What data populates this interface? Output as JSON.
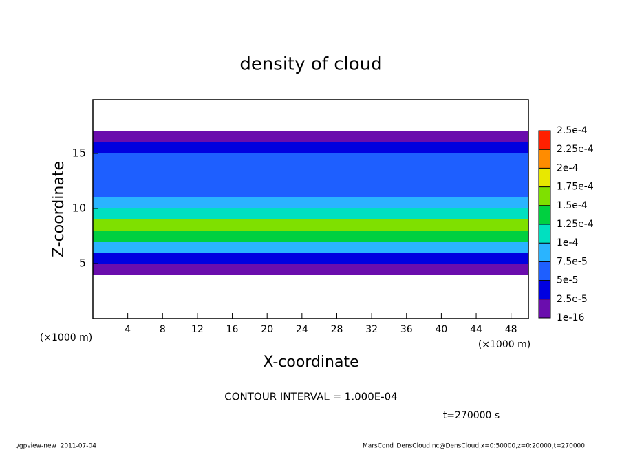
{
  "chart_data": {
    "type": "heatmap",
    "title": "density of cloud",
    "xlabel": "X-coordinate",
    "ylabel": "Z-coordinate",
    "x_unit": "(×1000 m)",
    "y_unit": "(×1000 m)",
    "xlim": [
      0,
      50
    ],
    "xticks": [
      4,
      8,
      12,
      16,
      20,
      24,
      28,
      32,
      36,
      40,
      44,
      48
    ],
    "ylim": [
      0,
      20
    ],
    "yticks": [
      5,
      10,
      15
    ],
    "z_bins": [
      4,
      5,
      6,
      7,
      8,
      9,
      10,
      11,
      12,
      13,
      14,
      15,
      16,
      17
    ],
    "values": [
      1e-05,
      4e-05,
      9e-05,
      0.00014,
      0.00015,
      0.00012,
      8e-05,
      6e-05,
      6e-05,
      5e-05,
      5e-05,
      4e-05,
      1e-05
    ],
    "levels": [
      {
        "value": 1e-16,
        "label": "1e-16"
      },
      {
        "value": 2.5e-05,
        "label": "2.5e-5"
      },
      {
        "value": 5e-05,
        "label": "5e-5"
      },
      {
        "value": 7.5e-05,
        "label": "7.5e-5"
      },
      {
        "value": 0.0001,
        "label": "1e-4"
      },
      {
        "value": 0.000125,
        "label": "1.25e-4"
      },
      {
        "value": 0.00015,
        "label": "1.5e-4"
      },
      {
        "value": 0.000175,
        "label": "1.75e-4"
      },
      {
        "value": 0.0002,
        "label": "2e-4"
      },
      {
        "value": 0.000225,
        "label": "2.25e-4"
      },
      {
        "value": 0.00025,
        "label": "2.5e-4"
      }
    ],
    "level_colors": [
      "#6a0dad",
      "#0000e0",
      "#1e5fff",
      "#2ab4ff",
      "#00e0c0",
      "#00d040",
      "#7fe000",
      "#e8e800",
      "#ff8c00",
      "#ff2000"
    ],
    "contour_note": "CONTOUR INTERVAL = 1.000E-04",
    "time_note": "t=270000 s",
    "footer_left": "./gpview-new  2011-07-04",
    "footer_right": "MarsCond_DensCloud.nc@DensCloud,x=0:50000,z=0:20000,t=270000"
  }
}
